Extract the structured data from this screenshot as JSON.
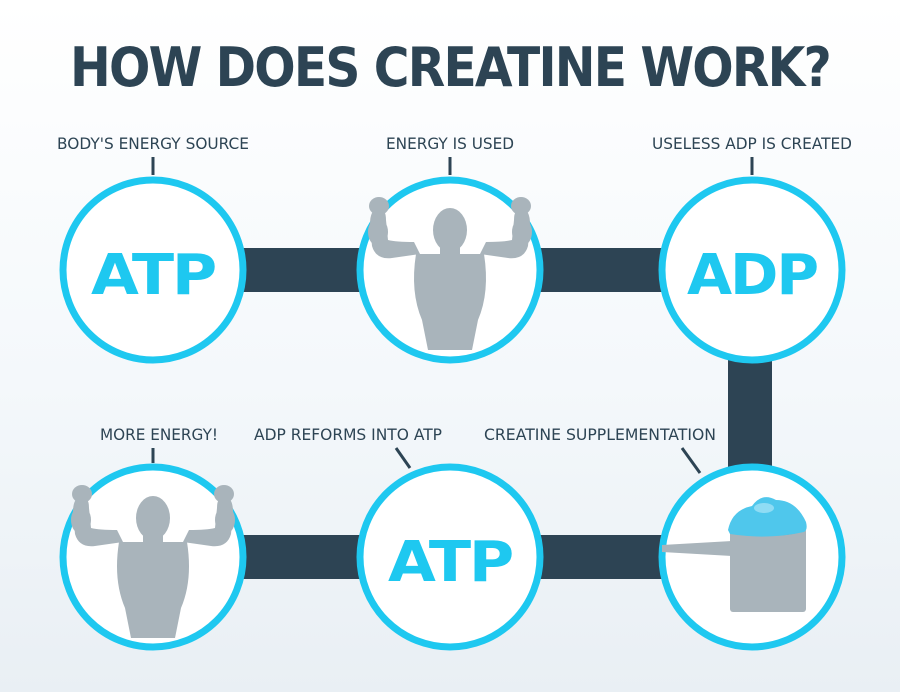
{
  "title": "HOW DOES CREATINE WORK?",
  "colors": {
    "accent": "#1ec8f0",
    "dark": "#2d4454",
    "silhouette": "#a9b4bb",
    "powder": "#4fc7ec",
    "background": "#f4f8fb"
  },
  "steps": [
    {
      "label": "BODY'S ENERGY SOURCE",
      "text": "ATP"
    },
    {
      "label": "ENERGY IS USED",
      "icon": "flexing-man-icon"
    },
    {
      "label": "USELESS ADP IS CREATED",
      "text": "ADP"
    },
    {
      "label": "CREATINE SUPPLEMENTATION",
      "icon": "supplement-scoop-icon"
    },
    {
      "label": "ADP REFORMS INTO ATP",
      "text": "ATP"
    },
    {
      "label": "MORE ENERGY!",
      "icon": "flexing-man-icon"
    }
  ]
}
